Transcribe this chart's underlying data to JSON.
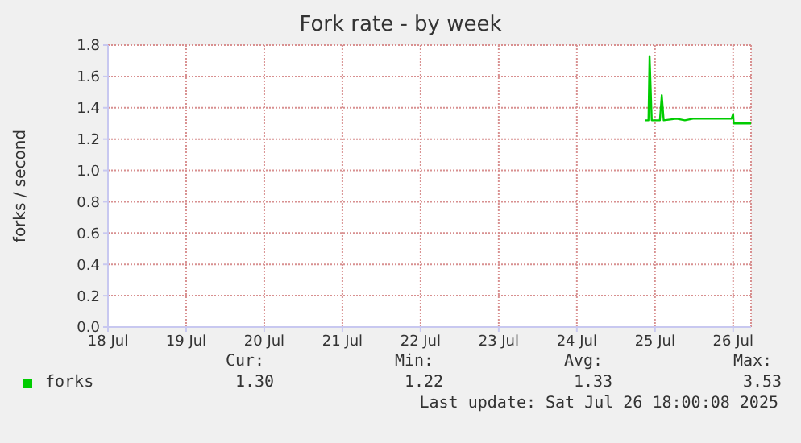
{
  "chart_data": {
    "type": "line",
    "title": "Fork rate - by week",
    "ylabel": "forks / second",
    "x": [
      "2025-07-24T21:00",
      "2025-07-24T22:00",
      "2025-07-24T22:20",
      "2025-07-24T23:00",
      "2025-07-25T01:30",
      "2025-07-25T02:05",
      "2025-07-25T02:40",
      "2025-07-25T06:40",
      "2025-07-25T09:10",
      "2025-07-25T11:40",
      "2025-07-25T16:40",
      "2025-07-25T21:30",
      "2025-07-25T23:30",
      "2025-07-26T00:00",
      "2025-07-26T00:10",
      "2025-07-26T02:30",
      "2025-07-26T05:30"
    ],
    "series": [
      {
        "name": "forks",
        "color": "#00cc00",
        "values": [
          1.32,
          1.32,
          1.73,
          1.32,
          1.32,
          1.48,
          1.32,
          1.33,
          1.32,
          1.33,
          1.33,
          1.33,
          1.33,
          1.36,
          1.3,
          1.3,
          1.3
        ]
      }
    ],
    "xlim": [
      "2025-07-18T00:00",
      "2025-07-26T05:30"
    ],
    "xticks": [
      {
        "value": "2025-07-18",
        "label": "18 Jul"
      },
      {
        "value": "2025-07-19",
        "label": "19 Jul"
      },
      {
        "value": "2025-07-20",
        "label": "20 Jul"
      },
      {
        "value": "2025-07-21",
        "label": "21 Jul"
      },
      {
        "value": "2025-07-22",
        "label": "22 Jul"
      },
      {
        "value": "2025-07-23",
        "label": "23 Jul"
      },
      {
        "value": "2025-07-24",
        "label": "24 Jul"
      },
      {
        "value": "2025-07-25",
        "label": "25 Jul"
      },
      {
        "value": "2025-07-26",
        "label": "26 Jul"
      }
    ],
    "ylim": [
      0,
      1.8
    ],
    "yticks": [
      {
        "value": 0,
        "label": "0.0"
      },
      {
        "value": 0.2,
        "label": "0.2"
      },
      {
        "value": 0.4,
        "label": "0.4"
      },
      {
        "value": 0.6,
        "label": "0.6"
      },
      {
        "value": 0.8,
        "label": "0.8"
      },
      {
        "value": 1,
        "label": "1.0"
      },
      {
        "value": 1.2,
        "label": "1.2"
      },
      {
        "value": 1.4,
        "label": "1.4"
      },
      {
        "value": 1.6,
        "label": "1.6"
      },
      {
        "value": 1.8,
        "label": "1.8"
      }
    ],
    "grid": true,
    "legend": "bottom",
    "marker": "none",
    "line_style": "solid",
    "annotations": [
      "Cur:",
      "1.30",
      "Min:",
      "1.22",
      "Avg:",
      "1.33",
      "Max:",
      "3.53",
      "Last update: Sat Jul 26 18:00:08 2025"
    ]
  }
}
